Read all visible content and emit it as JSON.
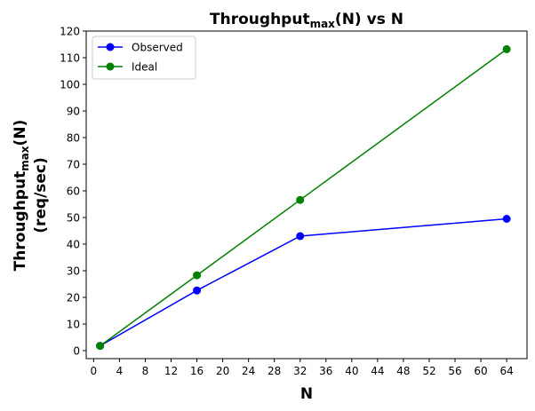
{
  "chart_data": {
    "type": "line",
    "title": {
      "main": "Throughput",
      "sub": "max",
      "rest": "(N) vs N"
    },
    "xlabel": "N",
    "ylabel": {
      "line1_main": "Throughput",
      "line1_sub": "max",
      "line1_rest": "(N)",
      "line2": "(req/sec)"
    },
    "xlim": [
      -1.15,
      67.15
    ],
    "ylim": [
      -3.0,
      120
    ],
    "xticks": [
      0,
      4,
      8,
      12,
      16,
      20,
      24,
      28,
      32,
      36,
      40,
      44,
      48,
      52,
      56,
      60,
      64
    ],
    "yticks": [
      0,
      10,
      20,
      30,
      40,
      50,
      60,
      70,
      80,
      90,
      100,
      110,
      120
    ],
    "grid": false,
    "legend_position": "upper-left",
    "series": [
      {
        "name": "Observed",
        "color": "#0000ff",
        "x": [
          1,
          16,
          32,
          64
        ],
        "y": [
          1.8,
          22.6,
          43.0,
          49.5
        ]
      },
      {
        "name": "Ideal",
        "color": "#008000",
        "x": [
          1,
          16,
          32,
          64
        ],
        "y": [
          1.8,
          28.3,
          56.6,
          113.2
        ]
      }
    ]
  }
}
